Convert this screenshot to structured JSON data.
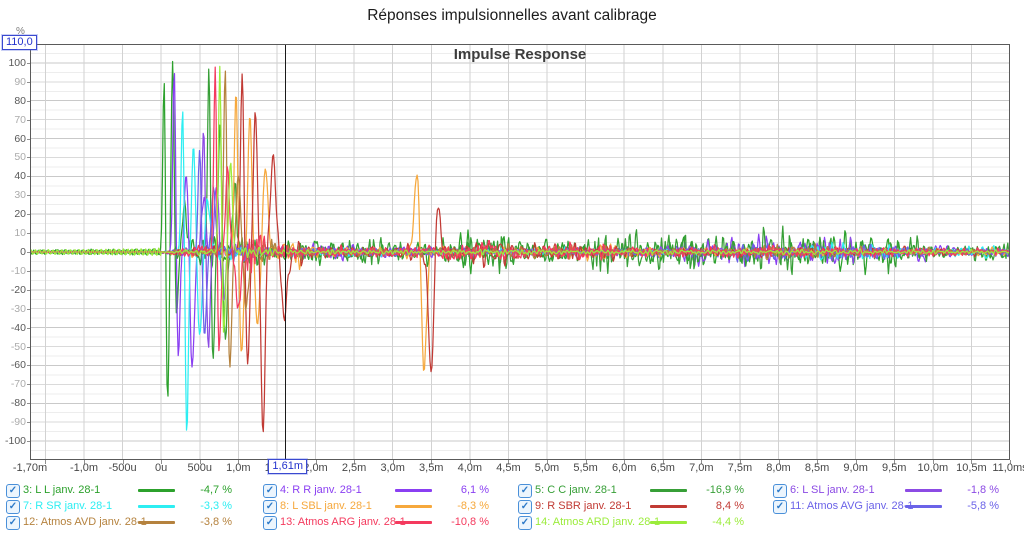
{
  "window": {
    "title": "Réponses impulsionnelles avant calibrage"
  },
  "chart_data": {
    "type": "line",
    "title": "Impulse Response",
    "y_axis": {
      "unit": "%",
      "max_box": "110,0",
      "ylim": [
        -110,
        110
      ],
      "tick_values": [
        100,
        90,
        80,
        70,
        60,
        50,
        40,
        30,
        20,
        10,
        0,
        -10,
        -20,
        -30,
        -40,
        -50,
        -60,
        -70,
        -80,
        -90,
        -100
      ]
    },
    "x_axis": {
      "xlim_ms": [
        -1.7,
        11.0
      ],
      "grid_step_ms": 0.5,
      "ticks": [
        {
          "t": -1.7,
          "label": "-1,70m"
        },
        {
          "t": -1.0,
          "label": "-1,0m"
        },
        {
          "t": -0.5,
          "label": "-500u"
        },
        {
          "t": 0,
          "label": "0u"
        },
        {
          "t": 0.5,
          "label": "500u"
        },
        {
          "t": 1.0,
          "label": "1,0m"
        },
        {
          "t": 1.5,
          "label": "1,5m"
        },
        {
          "t": 2.0,
          "label": "2,0m"
        },
        {
          "t": 2.5,
          "label": "2,5m"
        },
        {
          "t": 3.0,
          "label": "3,0m"
        },
        {
          "t": 3.5,
          "label": "3,5m"
        },
        {
          "t": 4.0,
          "label": "4,0m"
        },
        {
          "t": 4.5,
          "label": "4,5m"
        },
        {
          "t": 5.0,
          "label": "5,0m"
        },
        {
          "t": 5.5,
          "label": "5,5m"
        },
        {
          "t": 6.0,
          "label": "6,0m"
        },
        {
          "t": 6.5,
          "label": "6,5m"
        },
        {
          "t": 7.0,
          "label": "7,0m"
        },
        {
          "t": 7.5,
          "label": "7,5m"
        },
        {
          "t": 8.0,
          "label": "8,0m"
        },
        {
          "t": 8.5,
          "label": "8,5m"
        },
        {
          "t": 9.0,
          "label": "9,0m"
        },
        {
          "t": 9.5,
          "label": "9,5m"
        },
        {
          "t": 10.0,
          "label": "10,0m"
        },
        {
          "t": 10.5,
          "label": "10,5m"
        },
        {
          "t": 11.0,
          "label": "11,0ms"
        }
      ]
    },
    "cursor": {
      "t_ms": 1.61,
      "label": "1,61m"
    },
    "series": [
      {
        "id": "3",
        "short": "l-l",
        "label": "3: L L janv. 28-1",
        "color": "#2ca12c",
        "percent": "-4,7 %",
        "checked": true,
        "legend_col": 0,
        "legend_row": 0,
        "seed": 4022,
        "pre_osc": 1.6,
        "spikes": [
          {
            "t": 0.04,
            "a": 100,
            "w": 0.025
          },
          {
            "t": 0.08,
            "a": -86,
            "w": 0.028
          },
          {
            "t": 0.15,
            "a": 102,
            "w": 0.028
          },
          {
            "t": 0.2,
            "a": -40,
            "w": 0.03
          },
          {
            "t": 0.3,
            "a": 28,
            "w": 0.04
          }
        ],
        "noise": {
          "base": 9,
          "bursts": [
            {
              "t": 0.5,
              "a": 10,
              "w": 0.35
            },
            {
              "t": 2.0,
              "a": 6,
              "w": 0.4
            },
            {
              "t": 3.9,
              "a": 17,
              "w": 0.45
            },
            {
              "t": 5.0,
              "a": 6,
              "w": 0.5
            },
            {
              "t": 7.0,
              "a": 6,
              "w": 0.8
            },
            {
              "t": 8.9,
              "a": 13,
              "w": 0.7
            }
          ]
        }
      },
      {
        "id": "4",
        "short": "r-r",
        "label": "4: R R janv. 28-1",
        "color": "#8a3ff2",
        "percent": "6,1 %",
        "checked": true,
        "legend_col": 1,
        "legend_row": 0,
        "seed": 5359,
        "pre_osc": 0.7,
        "spikes": [
          {
            "t": 0.17,
            "a": 100,
            "w": 0.026
          },
          {
            "t": 0.22,
            "a": -58,
            "w": 0.03
          },
          {
            "t": 0.33,
            "a": 45,
            "w": 0.035
          },
          {
            "t": 0.4,
            "a": -62,
            "w": 0.04
          },
          {
            "t": 0.55,
            "a": 30,
            "w": 0.04
          }
        ],
        "noise": {
          "base": 6.5,
          "bursts": [
            {
              "t": 0.7,
              "a": 9,
              "w": 0.35
            },
            {
              "t": 2.3,
              "a": 5,
              "w": 0.4
            },
            {
              "t": 7.3,
              "a": 13,
              "w": 0.5
            },
            {
              "t": 8.3,
              "a": 10,
              "w": 0.7
            },
            {
              "t": 9.9,
              "a": 6,
              "w": 0.4
            }
          ]
        }
      },
      {
        "id": "5",
        "short": "c-c",
        "label": "5: C C janv. 28-1",
        "color": "#379f37",
        "percent": "-16,9 %",
        "checked": true,
        "legend_col": 2,
        "legend_row": 0,
        "seed": 6696,
        "pre_osc": 1.5,
        "spikes": [
          {
            "t": 0.62,
            "a": 101,
            "w": 0.026
          },
          {
            "t": 0.67,
            "a": -58,
            "w": 0.03
          },
          {
            "t": 0.76,
            "a": 70,
            "w": 0.03
          },
          {
            "t": 0.83,
            "a": -45,
            "w": 0.035
          },
          {
            "t": 0.95,
            "a": 30,
            "w": 0.04
          }
        ],
        "noise": {
          "base": 9.5,
          "bursts": [
            {
              "t": 1.1,
              "a": 9,
              "w": 0.3
            },
            {
              "t": 2.6,
              "a": 6,
              "w": 0.4
            },
            {
              "t": 4.3,
              "a": 14,
              "w": 0.4
            },
            {
              "t": 5.6,
              "a": 8,
              "w": 0.5
            },
            {
              "t": 6.4,
              "a": 14,
              "w": 0.7
            },
            {
              "t": 8.0,
              "a": 16,
              "w": 0.8
            },
            {
              "t": 9.4,
              "a": 9,
              "w": 0.5
            },
            {
              "t": 10.8,
              "a": 7,
              "w": 0.3
            }
          ]
        }
      },
      {
        "id": "6",
        "short": "l-sl",
        "label": "6: L SL janv. 28-1",
        "color": "#8c4be4",
        "percent": "-1,8 %",
        "checked": true,
        "legend_col": 3,
        "legend_row": 0,
        "seed": 8033,
        "pre_osc": 0,
        "spikes": [
          {
            "t": 0.55,
            "a": 68,
            "w": 0.028
          },
          {
            "t": 0.61,
            "a": -50,
            "w": 0.032
          },
          {
            "t": 0.72,
            "a": 35,
            "w": 0.04
          },
          {
            "t": 0.8,
            "a": -25,
            "w": 0.04
          }
        ],
        "noise": {
          "base": 5,
          "bursts": [
            {
              "t": 1.0,
              "a": 6,
              "w": 0.3
            },
            {
              "t": 6.8,
              "a": 5,
              "w": 0.5
            },
            {
              "t": 8.8,
              "a": 10,
              "w": 0.5
            }
          ]
        }
      },
      {
        "id": "7",
        "short": "r-sr",
        "label": "7: R SR janv. 28-1",
        "color": "#2deef2",
        "percent": "-3,3 %",
        "checked": true,
        "legend_col": 0,
        "legend_row": 1,
        "seed": 9370,
        "pre_osc": 0,
        "spikes": [
          {
            "t": 0.28,
            "a": 80,
            "w": 0.028
          },
          {
            "t": 0.33,
            "a": -100,
            "w": 0.03
          },
          {
            "t": 0.42,
            "a": 55,
            "w": 0.035
          },
          {
            "t": 0.5,
            "a": -45,
            "w": 0.04
          },
          {
            "t": 0.6,
            "a": 25,
            "w": 0.05
          }
        ],
        "noise": {
          "base": 4.5,
          "bursts": [
            {
              "t": 0.8,
              "a": 8,
              "w": 0.3
            },
            {
              "t": 8.6,
              "a": 13,
              "w": 0.25
            },
            {
              "t": 9.3,
              "a": 6,
              "w": 0.3
            },
            {
              "t": 10.6,
              "a": 7,
              "w": 0.35
            }
          ]
        }
      },
      {
        "id": "8",
        "short": "l-sbl",
        "label": "8: L SBL janv. 28-1",
        "color": "#f6a83c",
        "percent": "-8,3 %",
        "checked": true,
        "legend_col": 1,
        "legend_row": 1,
        "seed": 10707,
        "pre_osc": 0,
        "spikes": [
          {
            "t": 0.97,
            "a": 88,
            "w": 0.03
          },
          {
            "t": 1.04,
            "a": -56,
            "w": 0.035
          },
          {
            "t": 1.15,
            "a": 70,
            "w": 0.035
          },
          {
            "t": 1.25,
            "a": -40,
            "w": 0.04
          },
          {
            "t": 1.35,
            "a": 45,
            "w": 0.045
          },
          {
            "t": 3.32,
            "a": 45,
            "w": 0.05
          },
          {
            "t": 3.4,
            "a": -62,
            "w": 0.05
          }
        ],
        "noise": {
          "base": 5,
          "bursts": [
            {
              "t": 1.7,
              "a": 8,
              "w": 0.3
            },
            {
              "t": 3.4,
              "a": 8,
              "w": 0.3
            },
            {
              "t": 5.8,
              "a": 5,
              "w": 0.5
            }
          ]
        }
      },
      {
        "id": "9",
        "short": "r-sbr",
        "label": "9: R SBR janv. 28-1",
        "color": "#c13a34",
        "percent": "8,4 %",
        "checked": true,
        "legend_col": 2,
        "legend_row": 1,
        "seed": 12044,
        "pre_osc": 0,
        "spikes": [
          {
            "t": 1.05,
            "a": 95,
            "w": 0.03
          },
          {
            "t": 1.12,
            "a": -60,
            "w": 0.035
          },
          {
            "t": 1.22,
            "a": 75,
            "w": 0.035
          },
          {
            "t": 1.32,
            "a": -97,
            "w": 0.035
          },
          {
            "t": 1.45,
            "a": 50,
            "w": 0.05
          },
          {
            "t": 1.6,
            "a": -35,
            "w": 0.05
          },
          {
            "t": 3.5,
            "a": -64,
            "w": 0.05
          },
          {
            "t": 3.58,
            "a": 32,
            "w": 0.04
          }
        ],
        "noise": {
          "base": 6,
          "bursts": [
            {
              "t": 1.8,
              "a": 9,
              "w": 0.3
            },
            {
              "t": 3.6,
              "a": 8,
              "w": 0.4
            },
            {
              "t": 4.4,
              "a": 7,
              "w": 0.5
            },
            {
              "t": 5.5,
              "a": 7,
              "w": 0.5
            }
          ]
        }
      },
      {
        "id": "11",
        "short": "atmos-avg",
        "label": "11: Atmos AVG janv. 28-1",
        "color": "#6b63e8",
        "percent": "-5,8 %",
        "checked": true,
        "legend_col": 3,
        "legend_row": 1,
        "seed": 14718,
        "pre_osc": 0,
        "spikes": [
          {
            "t": 0.5,
            "a": 55,
            "w": 0.03
          },
          {
            "t": 0.56,
            "a": -45,
            "w": 0.035
          },
          {
            "t": 0.68,
            "a": 30,
            "w": 0.04
          }
        ],
        "noise": {
          "base": 5,
          "bursts": [
            {
              "t": 0.9,
              "a": 6,
              "w": 0.3
            },
            {
              "t": 7.7,
              "a": 9,
              "w": 0.4
            },
            {
              "t": 9.3,
              "a": 8,
              "w": 0.4
            }
          ]
        }
      },
      {
        "id": "12",
        "short": "atmos-avd",
        "label": "12: Atmos AVD janv. 28-1",
        "color": "#b5823e",
        "percent": "-3,8 %",
        "checked": true,
        "legend_col": 0,
        "legend_row": 2,
        "seed": 16055,
        "pre_osc": 0,
        "spikes": [
          {
            "t": 0.83,
            "a": 98,
            "w": 0.027
          },
          {
            "t": 0.89,
            "a": -62,
            "w": 0.032
          },
          {
            "t": 1.0,
            "a": 40,
            "w": 0.04
          },
          {
            "t": 1.1,
            "a": -28,
            "w": 0.04
          }
        ],
        "noise": {
          "base": 4.5,
          "bursts": [
            {
              "t": 1.4,
              "a": 8,
              "w": 0.3
            },
            {
              "t": 5.0,
              "a": 4,
              "w": 0.6
            },
            {
              "t": 8.3,
              "a": 5,
              "w": 0.6
            }
          ]
        }
      },
      {
        "id": "13",
        "short": "atmos-arg",
        "label": "13: Atmos ARG janv. 28-1",
        "color": "#f43a5e",
        "percent": "-10,8 %",
        "checked": true,
        "legend_col": 1,
        "legend_row": 2,
        "seed": 17392,
        "pre_osc": 0,
        "spikes": [
          {
            "t": 0.7,
            "a": 100,
            "w": 0.026
          },
          {
            "t": 0.75,
            "a": -55,
            "w": 0.03
          },
          {
            "t": 0.86,
            "a": 45,
            "w": 0.035
          },
          {
            "t": 1.0,
            "a": -30,
            "w": 0.04
          }
        ],
        "noise": {
          "base": 5.5,
          "bursts": [
            {
              "t": 1.2,
              "a": 8,
              "w": 0.3
            },
            {
              "t": 4.2,
              "a": 6,
              "w": 0.5
            },
            {
              "t": 5.5,
              "a": 5,
              "w": 0.4
            }
          ]
        }
      },
      {
        "id": "14",
        "short": "atmos-ard",
        "label": "14: Atmos ARD janv. 28-1",
        "color": "#9bec3b",
        "percent": "-4,4 %",
        "checked": true,
        "legend_col": 2,
        "legend_row": 2,
        "seed": 18729,
        "pre_osc": 2.0,
        "spikes": [
          {
            "t": 0.76,
            "a": 100,
            "w": 0.024
          },
          {
            "t": 0.81,
            "a": -42,
            "w": 0.028
          },
          {
            "t": 0.9,
            "a": 50,
            "w": 0.03
          }
        ],
        "noise": {
          "base": 2.8,
          "bursts": [
            {
              "t": 1.1,
              "a": 5,
              "w": 0.3
            },
            {
              "t": 4.5,
              "a": 2,
              "w": 0.5
            }
          ]
        }
      }
    ]
  }
}
